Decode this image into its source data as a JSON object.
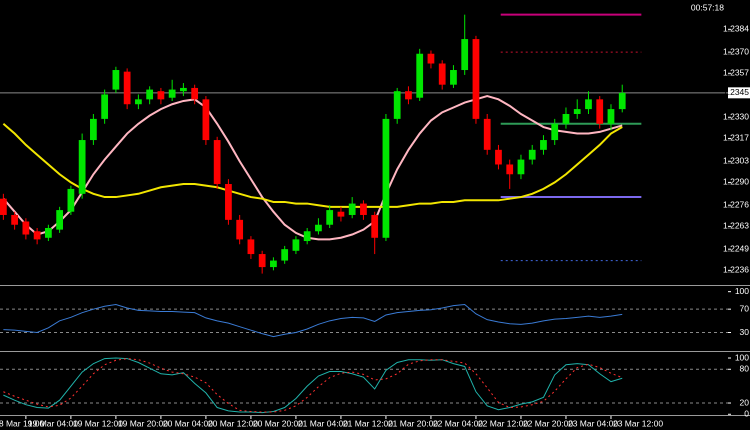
{
  "chart_data": [
    {
      "type": "candlestick",
      "clock": "00:57:18",
      "open": [
        1.228,
        1.227,
        1.2266,
        1.226,
        1.2256,
        1.2261,
        1.2272,
        1.2283,
        1.2316,
        1.2329,
        1.2347,
        1.2358,
        1.2338,
        1.2341,
        1.2346,
        1.2342,
        1.2346,
        1.2348,
        1.2341,
        1.2316,
        1.2289,
        1.2267,
        1.2255,
        1.2246,
        1.2238,
        1.2242,
        1.2248,
        1.2254,
        1.226,
        1.2264,
        1.2272,
        1.227,
        1.2277,
        1.227,
        1.2256,
        1.2329,
        1.2346,
        1.2342,
        1.2369,
        1.2363,
        1.235,
        1.2359,
        1.2378,
        1.2329,
        1.231,
        1.2301,
        1.2295,
        1.2304,
        1.231,
        1.2316,
        1.2326,
        1.2332,
        1.2335,
        1.2341,
        1.2326,
        1.2335
      ],
      "high": [
        1.2283,
        1.2272,
        1.2268,
        1.2262,
        1.2264,
        1.2275,
        1.2288,
        1.232,
        1.2332,
        1.2347,
        1.2361,
        1.236,
        1.2344,
        1.2349,
        1.2348,
        1.2353,
        1.2351,
        1.235,
        1.2343,
        1.2318,
        1.2292,
        1.227,
        1.2257,
        1.2248,
        1.2244,
        1.2251,
        1.2257,
        1.2262,
        1.2268,
        1.2276,
        1.2275,
        1.2281,
        1.2279,
        1.2272,
        1.2332,
        1.2348,
        1.2349,
        1.2372,
        1.2371,
        1.2365,
        1.2362,
        1.2393,
        1.238,
        1.2332,
        1.2313,
        1.2304,
        1.2307,
        1.2313,
        1.2319,
        1.2329,
        1.2336,
        1.2341,
        1.2346,
        1.2343,
        1.2338,
        1.235
      ],
      "low": [
        1.2267,
        1.2261,
        1.2255,
        1.2252,
        1.2254,
        1.2259,
        1.227,
        1.228,
        1.2313,
        1.2326,
        1.2345,
        1.2335,
        1.2335,
        1.2338,
        1.2338,
        1.234,
        1.2343,
        1.2338,
        1.2313,
        1.2286,
        1.2264,
        1.2252,
        1.2243,
        1.2234,
        1.2236,
        1.224,
        1.2246,
        1.2252,
        1.2258,
        1.2262,
        1.2266,
        1.2268,
        1.2267,
        1.2246,
        1.2254,
        1.2326,
        1.2338,
        1.234,
        1.236,
        1.2347,
        1.2348,
        1.2356,
        1.2326,
        1.2307,
        1.2298,
        1.2286,
        1.2292,
        1.2301,
        1.2307,
        1.2313,
        1.2323,
        1.2329,
        1.2332,
        1.2323,
        1.2322,
        1.2333
      ],
      "close": [
        1.227,
        1.2264,
        1.2258,
        1.2255,
        1.2262,
        1.2273,
        1.2286,
        1.2316,
        1.2329,
        1.2344,
        1.2359,
        1.2338,
        1.2341,
        1.2347,
        1.2341,
        1.2347,
        1.2348,
        1.2341,
        1.2316,
        1.2289,
        1.2267,
        1.2255,
        1.2246,
        1.2238,
        1.2242,
        1.2249,
        1.2255,
        1.226,
        1.2264,
        1.2273,
        1.2269,
        1.2277,
        1.227,
        1.2256,
        1.2329,
        1.2346,
        1.2341,
        1.2369,
        1.2363,
        1.235,
        1.2359,
        1.2378,
        1.2329,
        1.231,
        1.2301,
        1.2295,
        1.2304,
        1.231,
        1.2316,
        1.2326,
        1.2332,
        1.2335,
        1.2341,
        1.2326,
        1.2335,
        1.2345
      ],
      "up_color": "#00e600",
      "down_color": "#ff0000",
      "series": [
        {
          "color": "#ffb6c1",
          "values": [
            1.228,
            1.2272,
            1.2264,
            1.2258,
            1.226,
            1.2266,
            1.2273,
            1.2284,
            1.2295,
            1.2304,
            1.2312,
            1.232,
            1.2326,
            1.2331,
            1.2335,
            1.2338,
            1.234,
            1.2341,
            1.2336,
            1.2326,
            1.2315,
            1.2303,
            1.2292,
            1.2281,
            1.2272,
            1.2264,
            1.2259,
            1.2256,
            1.2255,
            1.2255,
            1.2256,
            1.2258,
            1.2261,
            1.2266,
            1.2283,
            1.2298,
            1.231,
            1.232,
            1.2328,
            1.2333,
            1.2336,
            1.2339,
            1.2341,
            1.2343,
            1.2341,
            1.2337,
            1.2332,
            1.2328,
            1.2324,
            1.2322,
            1.2321,
            1.232,
            1.232,
            1.2321,
            1.2323,
            1.2325
          ]
        },
        {
          "color": "#f2e600",
          "values": [
            1.2326,
            1.232,
            1.2313,
            1.2307,
            1.2301,
            1.2295,
            1.229,
            1.2286,
            1.2283,
            1.2281,
            1.2281,
            1.2282,
            1.2283,
            1.2285,
            1.2287,
            1.2288,
            1.2289,
            1.2289,
            1.2288,
            1.2287,
            1.2285,
            1.2283,
            1.2281,
            1.228,
            1.2278,
            1.2278,
            1.2277,
            1.2277,
            1.2276,
            1.2275,
            1.2275,
            1.2275,
            1.2275,
            1.2275,
            1.2275,
            1.2275,
            1.2276,
            1.2277,
            1.2277,
            1.2278,
            1.2278,
            1.2279,
            1.2279,
            1.2279,
            1.2279,
            1.228,
            1.2281,
            1.2283,
            1.2286,
            1.229,
            1.2295,
            1.2301,
            1.2307,
            1.2313,
            1.232,
            1.2324
          ]
        }
      ],
      "levels": [
        {
          "value": 1.2393,
          "color": "#c8007a",
          "style": "solid",
          "x": [
            44.2,
            56.7
          ]
        },
        {
          "value": 1.237,
          "color": "#c8102e",
          "style": "dotted",
          "x": [
            44.2,
            56.7
          ]
        },
        {
          "value": 1.2326,
          "color": "#2e9b57",
          "style": "solid",
          "x": [
            44.2,
            56.7
          ]
        },
        {
          "value": 1.2281,
          "color": "#7b68ee",
          "style": "solid",
          "x": [
            44.2,
            56.7
          ]
        },
        {
          "value": 1.2242,
          "color": "#4169e1",
          "style": "dotted",
          "x": [
            44.2,
            56.7
          ]
        }
      ],
      "current_price": 1.2345,
      "xlim": [
        -0.3,
        64.4
      ],
      "ylim": [
        1.2227,
        1.2402
      ],
      "yticks": [
        1.2236,
        1.2249,
        1.2263,
        1.2276,
        {
          "value": 1.229,
          "label": "1.2290"
        },
        1.2303,
        1.2317,
        {
          "value": 1.233,
          "label": "1.2330"
        },
        1.2357,
        {
          "value": 1.237,
          "label": "1.2370"
        },
        1.2384
      ]
    },
    {
      "type": "line",
      "series": [
        {
          "color": "#3a7bd5",
          "values": [
            35,
            34,
            32,
            30,
            38,
            50,
            56,
            64,
            70,
            75,
            78,
            72,
            68,
            67,
            66,
            66,
            65,
            64,
            55,
            50,
            46,
            40,
            34,
            28,
            23,
            27,
            30,
            36,
            44,
            50,
            54,
            56,
            55,
            49,
            60,
            64,
            66,
            68,
            69,
            72,
            76,
            78,
            62,
            52,
            48,
            45,
            44,
            46,
            50,
            53,
            54,
            56,
            58,
            56,
            58,
            61
          ]
        }
      ],
      "levels": [
        30,
        70
      ],
      "xlim": [
        -0.3,
        64.4
      ],
      "ylim": [
        0,
        108
      ],
      "yticks": [
        30,
        70,
        100
      ]
    },
    {
      "type": "line",
      "series": [
        {
          "color": "#20b2aa",
          "style": "solid",
          "values": [
            34,
            25,
            17,
            12,
            11,
            25,
            50,
            75,
            90,
            99,
            100,
            99,
            92,
            82,
            72,
            70,
            74,
            55,
            38,
            12,
            6,
            4,
            4,
            3,
            5,
            12,
            28,
            50,
            68,
            76,
            76,
            72,
            66,
            45,
            78,
            92,
            97,
            97,
            96,
            97,
            90,
            85,
            40,
            15,
            8,
            12,
            18,
            22,
            30,
            70,
            88,
            90,
            88,
            72,
            58,
            64
          ]
        },
        {
          "color": "#ff3030",
          "style": "dotted",
          "values": [
            40,
            32,
            25,
            18,
            13,
            16,
            29,
            50,
            72,
            88,
            96,
            99,
            97,
            91,
            82,
            75,
            72,
            66,
            56,
            35,
            19,
            7,
            5,
            4,
            4,
            7,
            15,
            30,
            49,
            65,
            73,
            75,
            71,
            61,
            63,
            72,
            89,
            95,
            97,
            97,
            94,
            91,
            72,
            47,
            21,
            12,
            13,
            17,
            23,
            41,
            63,
            83,
            89,
            83,
            73,
            65
          ]
        }
      ],
      "levels": [
        20,
        80
      ],
      "xlim": [
        -0.3,
        64.4
      ],
      "ylim": [
        -1.3,
        110.7
      ],
      "yticks": [
        0,
        20,
        80,
        100
      ],
      "xticks": [
        {
          "value": -1,
          "label": "18 Mar 19:00"
        },
        {
          "value": 2,
          "label": "19 Mar 04:00"
        },
        {
          "value": 6,
          "label": "19 Mar 12:00"
        },
        {
          "value": 10,
          "label": "19 Mar 20:00"
        },
        {
          "value": 14,
          "label": "20 Mar 04:00"
        },
        {
          "value": 18,
          "label": "20 Mar 12:00"
        },
        {
          "value": 22,
          "label": "20 Mar 20:00"
        },
        {
          "value": 26,
          "label": "21 Mar 04:00"
        },
        {
          "value": 30,
          "label": "21 Mar 12:00"
        },
        {
          "value": 34,
          "label": "21 Mar 20:00"
        },
        {
          "value": 38,
          "label": "22 Mar 04:00"
        },
        {
          "value": 42,
          "label": "22 Mar 12:00"
        },
        {
          "value": 46,
          "label": "22 Mar 20:00"
        },
        {
          "value": 50,
          "label": "23 Mar 04:00"
        },
        {
          "value": 54,
          "label": "23 Mar 12:00"
        }
      ]
    }
  ]
}
